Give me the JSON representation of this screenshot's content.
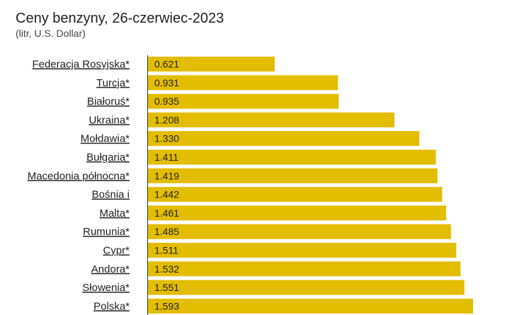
{
  "chart_data": {
    "type": "bar",
    "orientation": "horizontal",
    "title": "Ceny benzyny, 26-czerwiec-2023",
    "subtitle": "(litr, U.S. Dollar)",
    "categories": [
      "Federacja Rosyjska*",
      "Turcja*",
      "Białoruś*",
      "Ukraina*",
      "Mołdawia*",
      "Bułgaria*",
      "Macedonia północna*",
      "Bośnia i",
      "Malta*",
      "Rumunia*",
      "Cypr*",
      "Andora*",
      "Słowenia*",
      "Polska*"
    ],
    "values": [
      0.621,
      0.931,
      0.935,
      1.208,
      1.33,
      1.411,
      1.419,
      1.442,
      1.461,
      1.485,
      1.511,
      1.532,
      1.551,
      1.593
    ],
    "value_labels": [
      "0.621",
      "0.931",
      "0.935",
      "1.208",
      "1.330",
      "1.411",
      "1.419",
      "1.442",
      "1.461",
      "1.485",
      "1.511",
      "1.532",
      "1.551",
      "1.593"
    ],
    "xlim": [
      0,
      1.593
    ],
    "grid": false,
    "colors": {
      "bar": "#e3bd00",
      "axis": "#333333"
    }
  }
}
